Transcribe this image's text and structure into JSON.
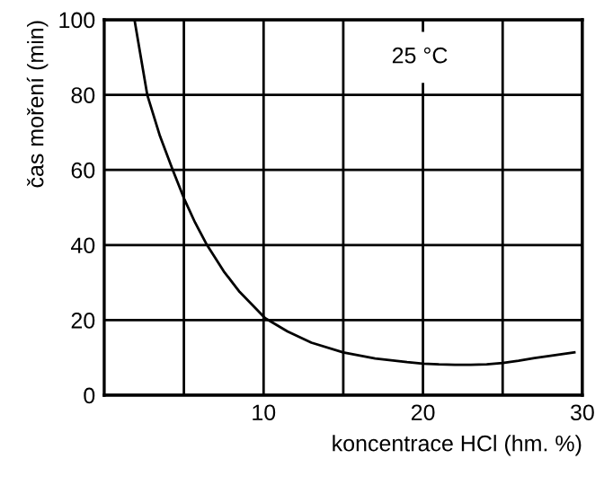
{
  "chart_data": {
    "type": "line",
    "xlabel": "koncentrace HCl (hm. %)",
    "ylabel": "čas moření (min)",
    "annotations": [
      "25 °C"
    ],
    "x": [
      1.9,
      2.3,
      2.7,
      3.5,
      4.3,
      5.05,
      5.7,
      6.45,
      7.5,
      8.5,
      10.1,
      11.5,
      13,
      15,
      17,
      19,
      20,
      21,
      22,
      23,
      24,
      25,
      26,
      27,
      28,
      29.5
    ],
    "series": [
      {
        "color": "#000000",
        "values": [
          100,
          90,
          80,
          69,
          60,
          52,
          46,
          40,
          33,
          27.5,
          20.5,
          17,
          14,
          11.4,
          9.8,
          8.8,
          8.4,
          8.2,
          8.1,
          8.1,
          8.2,
          8.6,
          9.2,
          9.9,
          10.5,
          11.4
        ]
      }
    ],
    "xlim": [
      0,
      30
    ],
    "ylim": [
      0,
      100
    ],
    "xticks": [
      {
        "value": 5,
        "label": null
      },
      10,
      {
        "value": 15,
        "label": null
      },
      20,
      {
        "value": 25,
        "label": null
      },
      30
    ],
    "yticks": [
      0,
      20,
      40,
      60,
      80,
      100
    ],
    "grid": true,
    "marker": "none",
    "line_style": "solid"
  }
}
